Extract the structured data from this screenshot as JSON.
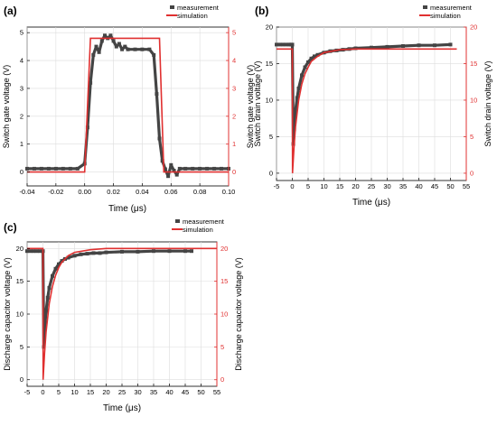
{
  "colors": {
    "measurement": "#444444",
    "simulation": "#e03030",
    "right_axis": "#e03030",
    "grid": "#dddddd"
  },
  "chart_data": [
    {
      "id": "a",
      "panel_label": "(a)",
      "type": "line",
      "xlabel": "Time (μs)",
      "ylabel": "Switch gate voltage (V)",
      "ylabel_right": "Switch gate voltage (V)",
      "xlim": [
        -0.04,
        0.1
      ],
      "ylim": [
        -0.5,
        5.2
      ],
      "xticks": [
        -0.04,
        -0.02,
        0.0,
        0.02,
        0.04,
        0.06,
        0.08,
        0.1
      ],
      "xtick_labels": [
        "-0.04",
        "-0.02",
        "0.00",
        "0.02",
        "0.04",
        "0.06",
        "0.08",
        "0.10"
      ],
      "yticks": [
        0,
        1,
        2,
        3,
        4,
        5
      ],
      "ytick_labels": [
        "0",
        "1",
        "2",
        "3",
        "4",
        "5"
      ],
      "yticks_right": [
        0,
        1,
        2,
        3,
        4,
        5
      ],
      "ytick_labels_right": [
        "0",
        "1",
        "2",
        "3",
        "4",
        "5"
      ],
      "grid": true,
      "legend": "top-right",
      "series": [
        {
          "name": "measurement",
          "style": "square-markers",
          "x": [
            -0.04,
            -0.035,
            -0.03,
            -0.025,
            -0.02,
            -0.015,
            -0.01,
            -0.005,
            0.0,
            0.002,
            0.004,
            0.006,
            0.008,
            0.01,
            0.012,
            0.014,
            0.016,
            0.018,
            0.02,
            0.022,
            0.024,
            0.026,
            0.028,
            0.03,
            0.035,
            0.04,
            0.045,
            0.048,
            0.05,
            0.052,
            0.054,
            0.056,
            0.058,
            0.06,
            0.062,
            0.064,
            0.066,
            0.07,
            0.075,
            0.08,
            0.085,
            0.09,
            0.095,
            0.1
          ],
          "y": [
            0.12,
            0.12,
            0.12,
            0.12,
            0.12,
            0.12,
            0.12,
            0.12,
            0.3,
            1.6,
            3.2,
            4.2,
            4.5,
            4.3,
            4.7,
            4.9,
            4.8,
            4.9,
            4.7,
            4.5,
            4.6,
            4.4,
            4.5,
            4.4,
            4.4,
            4.4,
            4.4,
            4.2,
            2.8,
            1.2,
            0.4,
            0.1,
            -0.15,
            0.25,
            0.05,
            -0.1,
            0.12,
            0.12,
            0.12,
            0.12,
            0.12,
            0.12,
            0.12,
            0.12
          ]
        },
        {
          "name": "simulation",
          "style": "line",
          "x": [
            -0.04,
            0.0,
            0.004,
            0.052,
            0.055,
            0.1
          ],
          "y": [
            0.0,
            0.0,
            4.8,
            4.8,
            0.0,
            0.0
          ]
        }
      ]
    },
    {
      "id": "b",
      "panel_label": "(b)",
      "type": "line",
      "xlabel": "Time (μs)",
      "ylabel": "Switch drain voltage (V)",
      "ylabel_right": "Switch drain voltage (V)",
      "xlim": [
        -5,
        55
      ],
      "ylim": [
        -1,
        20
      ],
      "xticks": [
        -5,
        0,
        5,
        10,
        15,
        20,
        25,
        30,
        35,
        40,
        45,
        50,
        55
      ],
      "xtick_labels": [
        "-5",
        "0",
        "5",
        "10",
        "15",
        "20",
        "25",
        "30",
        "35",
        "40",
        "45",
        "50",
        "55"
      ],
      "yticks": [
        0,
        5,
        10,
        15,
        20
      ],
      "ytick_labels": [
        "0",
        "5",
        "10",
        "15",
        "20"
      ],
      "yticks_right": [
        0,
        5,
        10,
        15,
        20
      ],
      "ytick_labels_right": [
        "0",
        "5",
        "10",
        "15",
        "20"
      ],
      "grid": true,
      "legend": "top-right",
      "series": [
        {
          "name": "measurement",
          "style": "square-markers",
          "x": [
            -5,
            -4,
            -3,
            -2,
            -1,
            -0.5,
            0,
            0.3,
            0.6,
            1,
            1.5,
            2,
            3,
            4,
            5,
            6,
            7,
            8,
            10,
            12,
            14,
            16,
            18,
            20,
            25,
            30,
            35,
            40,
            45,
            50
          ],
          "y": [
            17.6,
            17.6,
            17.6,
            17.6,
            17.6,
            17.6,
            17.6,
            4,
            6,
            8.5,
            10.3,
            11.6,
            13.4,
            14.5,
            15.2,
            15.7,
            16.0,
            16.2,
            16.5,
            16.7,
            16.8,
            16.9,
            17.0,
            17.1,
            17.2,
            17.3,
            17.4,
            17.5,
            17.5,
            17.6
          ]
        },
        {
          "name": "simulation",
          "style": "line",
          "x": [
            -5,
            0,
            0.05,
            0.5,
            1,
            2,
            3,
            4,
            5,
            6,
            8,
            10,
            15,
            20,
            30,
            40,
            50,
            52
          ],
          "y": [
            17.0,
            17.0,
            0.0,
            3.4,
            6.3,
            10.0,
            12.2,
            13.6,
            14.5,
            15.3,
            16.0,
            16.5,
            16.9,
            17.0,
            17.0,
            17.0,
            17.0,
            17.0
          ]
        }
      ]
    },
    {
      "id": "c",
      "panel_label": "(c)",
      "type": "line",
      "xlabel": "Time (μs)",
      "ylabel": "Discharge capacitor voltage (V)",
      "ylabel_right": "Discharge capacitor voltage (V)",
      "xlim": [
        -5,
        55
      ],
      "ylim": [
        -1,
        21
      ],
      "xticks": [
        -5,
        0,
        5,
        10,
        15,
        20,
        25,
        30,
        35,
        40,
        45,
        50,
        55
      ],
      "xtick_labels": [
        "-5",
        "0",
        "5",
        "10",
        "15",
        "20",
        "25",
        "30",
        "35",
        "40",
        "45",
        "50",
        "55"
      ],
      "yticks": [
        0,
        5,
        10,
        15,
        20
      ],
      "ytick_labels": [
        "0",
        "5",
        "10",
        "15",
        "20"
      ],
      "yticks_right": [
        0,
        5,
        10,
        15,
        20
      ],
      "ytick_labels_right": [
        "0",
        "5",
        "10",
        "15",
        "20"
      ],
      "grid": true,
      "legend": "top-right",
      "series": [
        {
          "name": "measurement",
          "style": "square-markers",
          "x": [
            -5,
            -4,
            -3,
            -2,
            -1,
            0,
            0.3,
            0.6,
            1,
            1.5,
            2,
            3,
            4,
            5,
            6,
            7,
            8,
            10,
            12,
            14,
            16,
            18,
            20,
            25,
            30,
            35,
            40,
            45,
            47
          ],
          "y": [
            19.6,
            19.6,
            19.6,
            19.6,
            19.6,
            19.6,
            5,
            8,
            10.5,
            12.5,
            14,
            15.8,
            16.9,
            17.6,
            18.1,
            18.4,
            18.6,
            18.9,
            19.1,
            19.2,
            19.3,
            19.3,
            19.4,
            19.5,
            19.5,
            19.6,
            19.6,
            19.6,
            19.6
          ]
        },
        {
          "name": "simulation",
          "style": "line",
          "x": [
            -5,
            0,
            0.05,
            0.5,
            1,
            2,
            3,
            4,
            5,
            6,
            8,
            10,
            15,
            20,
            30,
            40,
            50,
            55
          ],
          "y": [
            20.0,
            20.0,
            0.0,
            4.0,
            7.3,
            11.6,
            14.2,
            15.9,
            17.1,
            17.9,
            18.9,
            19.4,
            19.8,
            20.0,
            20.0,
            20.0,
            20.0,
            20.0
          ]
        }
      ]
    }
  ]
}
